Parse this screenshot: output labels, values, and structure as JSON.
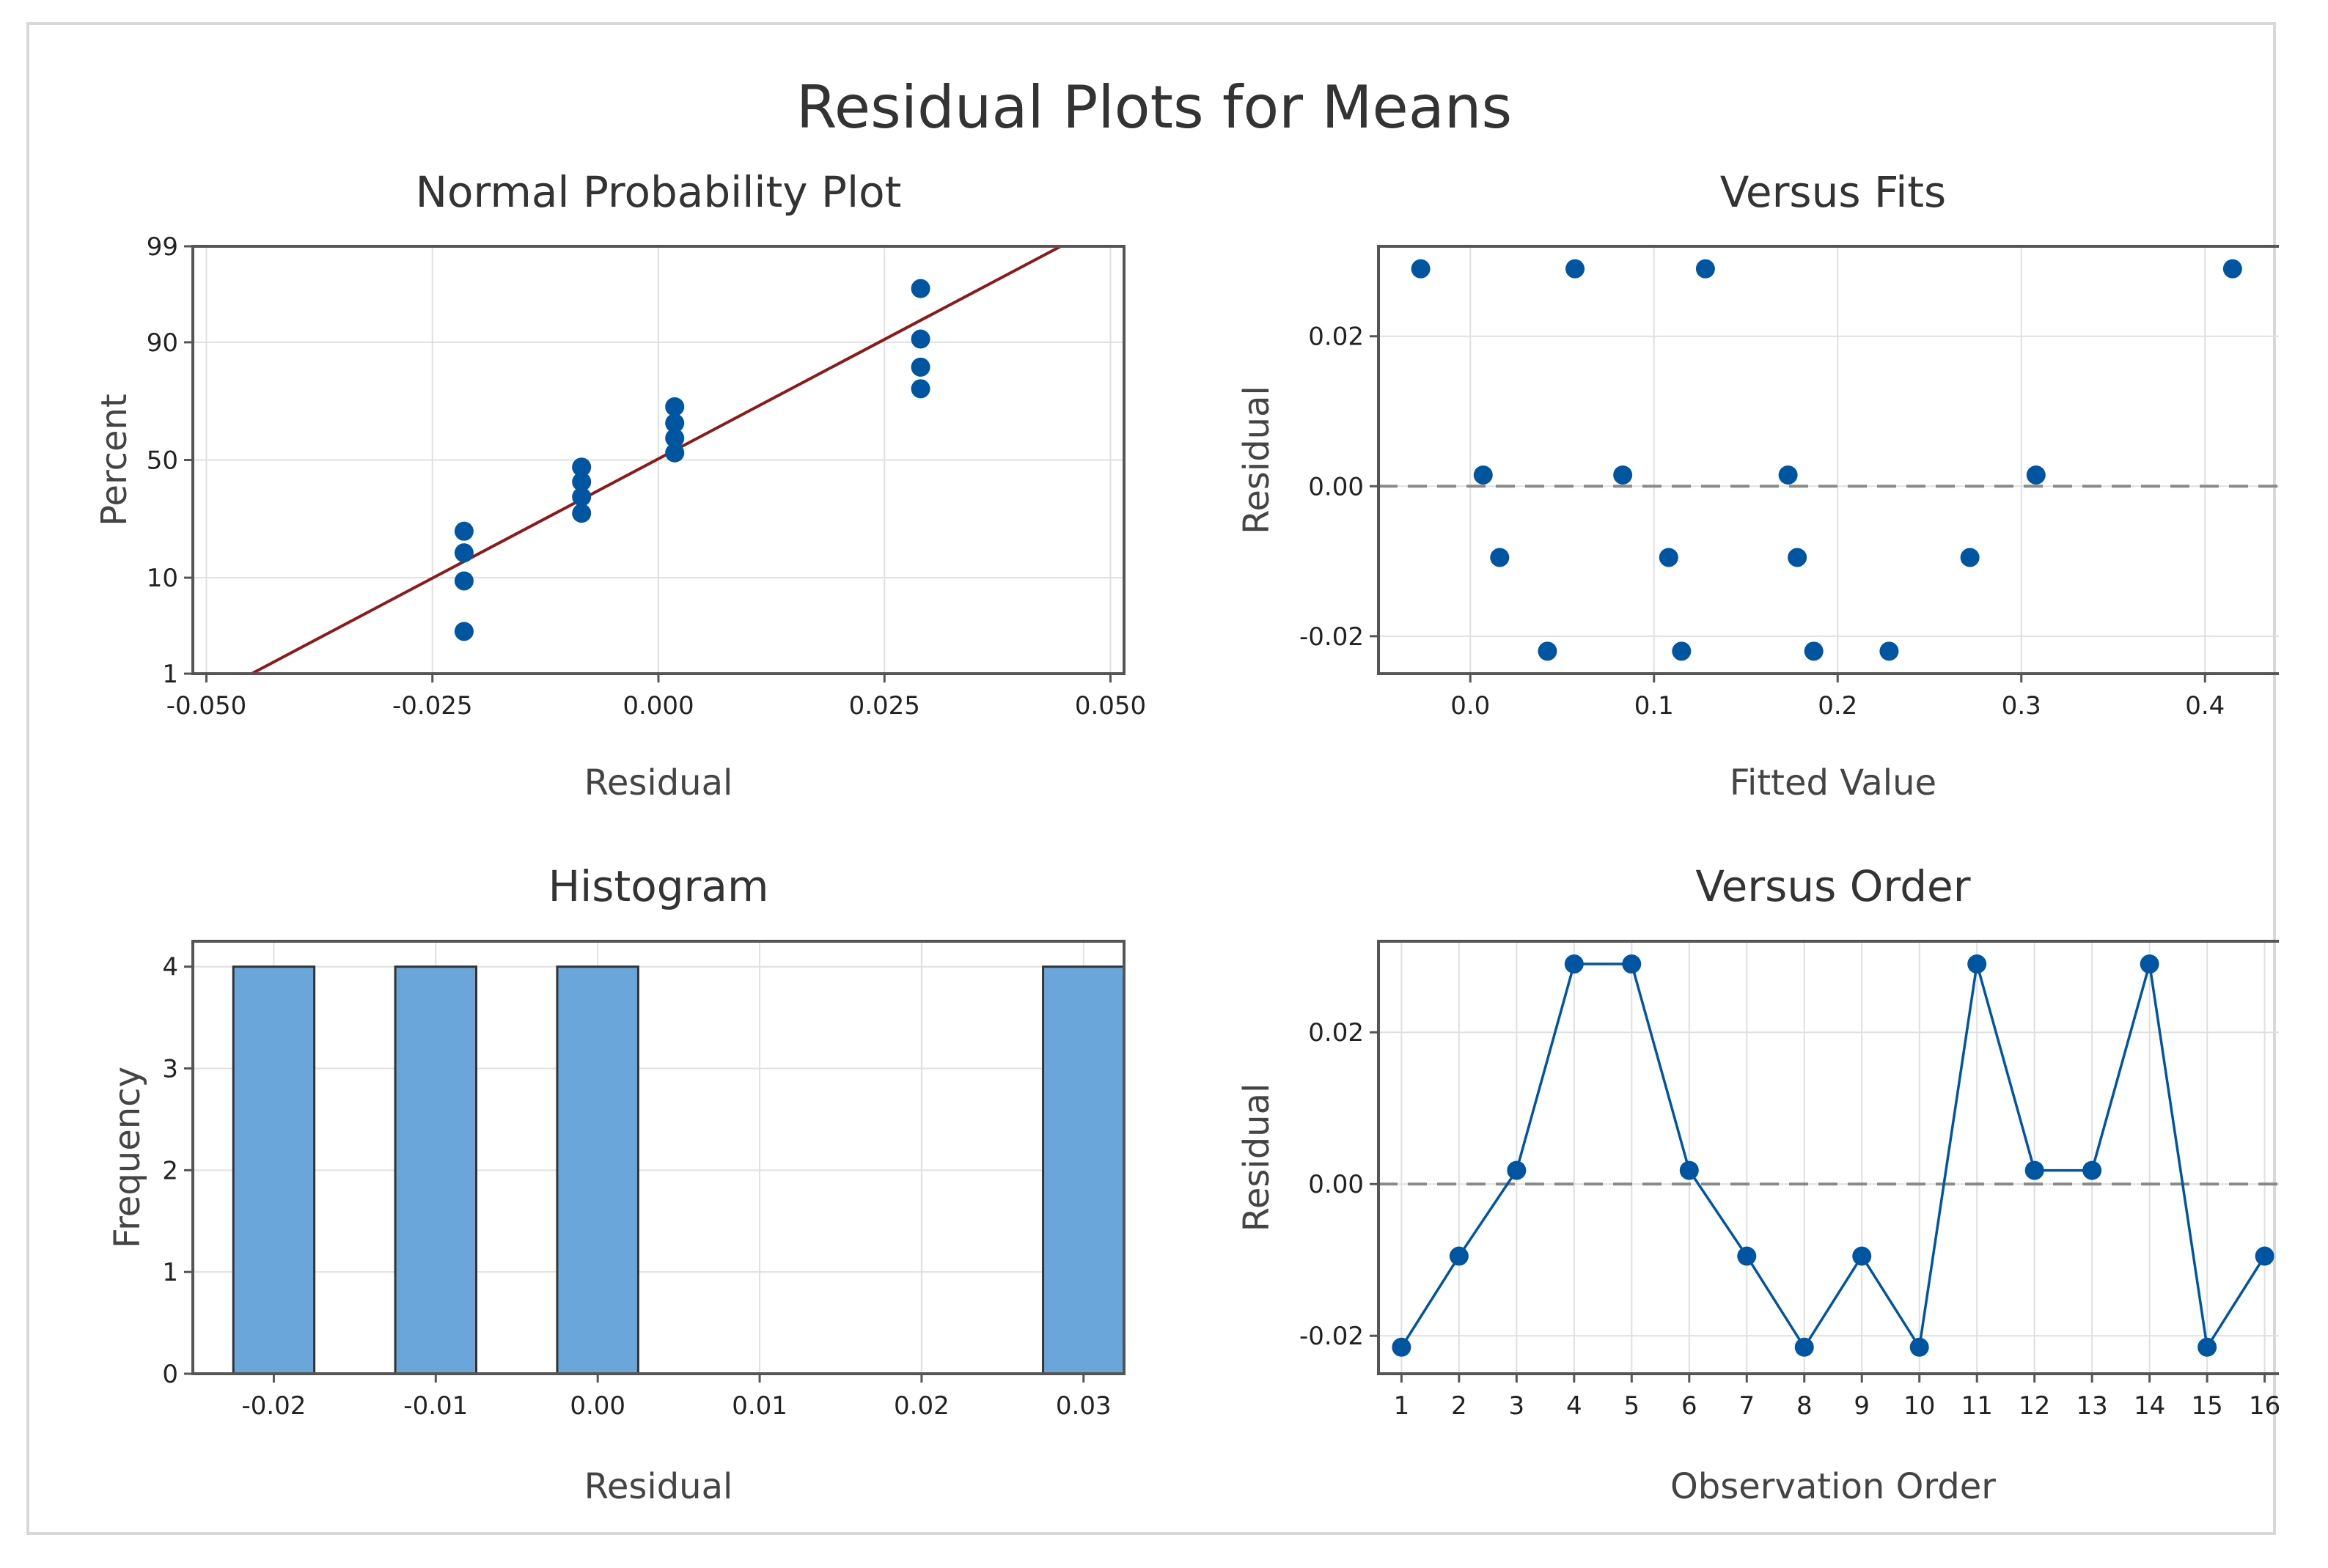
{
  "chart_data": [
    {
      "type": "scatter",
      "title": "Normal Probability Plot",
      "xlabel": "Residual",
      "ylabel": "Percent",
      "xlim": [
        -0.05,
        0.05
      ],
      "xticks": [
        "-0.050",
        "-0.025",
        "0.000",
        "0.025",
        "0.050"
      ],
      "xtick_values": [
        -0.05,
        -0.025,
        0.0,
        0.025,
        0.05
      ],
      "yticks": [
        "1",
        "10",
        "50",
        "90",
        "99"
      ],
      "ytick_values": [
        1,
        10,
        50,
        90,
        99
      ],
      "points": [
        {
          "x": -0.0215,
          "y": 3.1
        },
        {
          "x": -0.0215,
          "y": 9.4
        },
        {
          "x": -0.0215,
          "y": 15.6
        },
        {
          "x": -0.0215,
          "y": 21.9
        },
        {
          "x": -0.0085,
          "y": 28.1
        },
        {
          "x": -0.0085,
          "y": 34.4
        },
        {
          "x": -0.0085,
          "y": 40.6
        },
        {
          "x": -0.0085,
          "y": 46.9
        },
        {
          "x": 0.0018,
          "y": 53.1
        },
        {
          "x": 0.0018,
          "y": 59.4
        },
        {
          "x": 0.0018,
          "y": 65.6
        },
        {
          "x": 0.0018,
          "y": 71.9
        },
        {
          "x": 0.029,
          "y": 78.1
        },
        {
          "x": 0.029,
          "y": 84.4
        },
        {
          "x": 0.029,
          "y": 90.6
        },
        {
          "x": 0.029,
          "y": 96.9
        }
      ],
      "fit_line": {
        "x": [
          -0.045,
          0.0445
        ],
        "y": [
          1,
          99
        ]
      },
      "colors": {
        "point": "#0055a0",
        "line": "#8b1a1a"
      }
    },
    {
      "type": "scatter",
      "title": "Versus Fits",
      "xlabel": "Fitted Value",
      "ylabel": "Residual",
      "xlim": [
        -0.05,
        0.445
      ],
      "ylim": [
        -0.025,
        0.032
      ],
      "xticks": [
        "0.0",
        "0.1",
        "0.2",
        "0.3",
        "0.4"
      ],
      "xtick_values": [
        0.0,
        0.1,
        0.2,
        0.3,
        0.4
      ],
      "yticks": [
        "-0.02",
        "0.00",
        "0.02"
      ],
      "ytick_values": [
        -0.02,
        0.0,
        0.02
      ],
      "points": [
        {
          "x": -0.027,
          "y": 0.029
        },
        {
          "x": 0.057,
          "y": 0.029
        },
        {
          "x": 0.128,
          "y": 0.029
        },
        {
          "x": 0.415,
          "y": 0.029
        },
        {
          "x": 0.007,
          "y": 0.0015
        },
        {
          "x": 0.083,
          "y": 0.0015
        },
        {
          "x": 0.173,
          "y": 0.0015
        },
        {
          "x": 0.308,
          "y": 0.0015
        },
        {
          "x": 0.016,
          "y": -0.0095
        },
        {
          "x": 0.108,
          "y": -0.0095
        },
        {
          "x": 0.178,
          "y": -0.0095
        },
        {
          "x": 0.272,
          "y": -0.0095
        },
        {
          "x": 0.042,
          "y": -0.022
        },
        {
          "x": 0.115,
          "y": -0.022
        },
        {
          "x": 0.187,
          "y": -0.022
        },
        {
          "x": 0.228,
          "y": -0.022
        }
      ],
      "reference_line": 0.0,
      "colors": {
        "point": "#0055a0",
        "reference": "#8a8a8a"
      }
    },
    {
      "type": "bar",
      "title": "Histogram",
      "xlabel": "Residual",
      "ylabel": "Frequency",
      "xlim": [
        -0.025,
        0.0325
      ],
      "ylim": [
        0,
        4.25
      ],
      "xticks": [
        "-0.02",
        "-0.01",
        "0.00",
        "0.01",
        "0.02",
        "0.03"
      ],
      "xtick_values": [
        -0.02,
        -0.01,
        0.0,
        0.01,
        0.02,
        0.03
      ],
      "yticks": [
        "0",
        "1",
        "2",
        "3",
        "4"
      ],
      "ytick_values": [
        0,
        1,
        2,
        3,
        4
      ],
      "bin_width": 0.005,
      "bins": [
        {
          "center": -0.02,
          "count": 4
        },
        {
          "center": -0.01,
          "count": 4
        },
        {
          "center": 0.0,
          "count": 4
        },
        {
          "center": 0.03,
          "count": 4
        }
      ],
      "colors": {
        "bar": "#6aa6d9",
        "edge": "#333333"
      }
    },
    {
      "type": "line",
      "title": "Versus Order",
      "xlabel": "Observation Order",
      "ylabel": "Residual",
      "xlim": [
        0.6,
        16.4
      ],
      "ylim": [
        -0.025,
        0.032
      ],
      "xticks": [
        "1",
        "2",
        "3",
        "4",
        "5",
        "6",
        "7",
        "8",
        "9",
        "10",
        "11",
        "12",
        "13",
        "14",
        "15",
        "16"
      ],
      "xtick_values": [
        1,
        2,
        3,
        4,
        5,
        6,
        7,
        8,
        9,
        10,
        11,
        12,
        13,
        14,
        15,
        16
      ],
      "yticks": [
        "-0.02",
        "0.00",
        "0.02"
      ],
      "ytick_values": [
        -0.02,
        0.0,
        0.02
      ],
      "x": [
        1,
        2,
        3,
        4,
        5,
        6,
        7,
        8,
        9,
        10,
        11,
        12,
        13,
        14,
        15,
        16
      ],
      "values": [
        -0.0215,
        -0.0095,
        0.0018,
        0.029,
        0.029,
        0.0018,
        -0.0095,
        -0.0215,
        -0.0095,
        -0.0215,
        0.029,
        0.0018,
        0.0018,
        0.029,
        -0.0215,
        -0.0095
      ],
      "reference_line": 0.0,
      "colors": {
        "point": "#0055a0",
        "line": "#0055a0",
        "reference": "#8a8a8a"
      }
    }
  ],
  "figure": {
    "title": "Residual Plots for Means"
  },
  "colors": {
    "grid": "#e0e0e0",
    "frame": "#555555",
    "text": "#333333"
  }
}
